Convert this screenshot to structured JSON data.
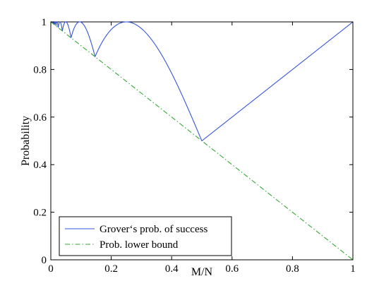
{
  "chart_data": {
    "type": "line",
    "title": "",
    "xlabel": "M/N",
    "ylabel": "Probability",
    "xlim": [
      0,
      1
    ],
    "ylim": [
      0,
      1
    ],
    "x_ticks": [
      "0",
      "0.2",
      "0.4",
      "0.6",
      "0.8",
      "1"
    ],
    "y_ticks": [
      "0",
      "0.2",
      "0.4",
      "0.6",
      "0.8",
      "1"
    ],
    "grid": false,
    "legend_position": "bottom-left",
    "series": [
      {
        "name": "Grover‘s prob. of success",
        "style": "solid",
        "color": "#3355dd",
        "function": "grover_success"
      },
      {
        "name": "Prob. lower bound",
        "style": "dash-dot",
        "color": "#33aa33",
        "function": "one_minus_x",
        "x": [
          0,
          1
        ],
        "y": [
          1,
          0
        ]
      }
    ],
    "key_points": [
      {
        "x": 0.0,
        "y": 1.0
      },
      {
        "x": 0.067,
        "y": 0.933
      },
      {
        "x": 0.0955,
        "y": 1.0
      },
      {
        "x": 0.1464,
        "y": 0.854
      },
      {
        "x": 0.25,
        "y": 1.0
      },
      {
        "x": 0.5,
        "y": 0.5
      },
      {
        "x": 1.0,
        "y": 1.0
      }
    ]
  }
}
